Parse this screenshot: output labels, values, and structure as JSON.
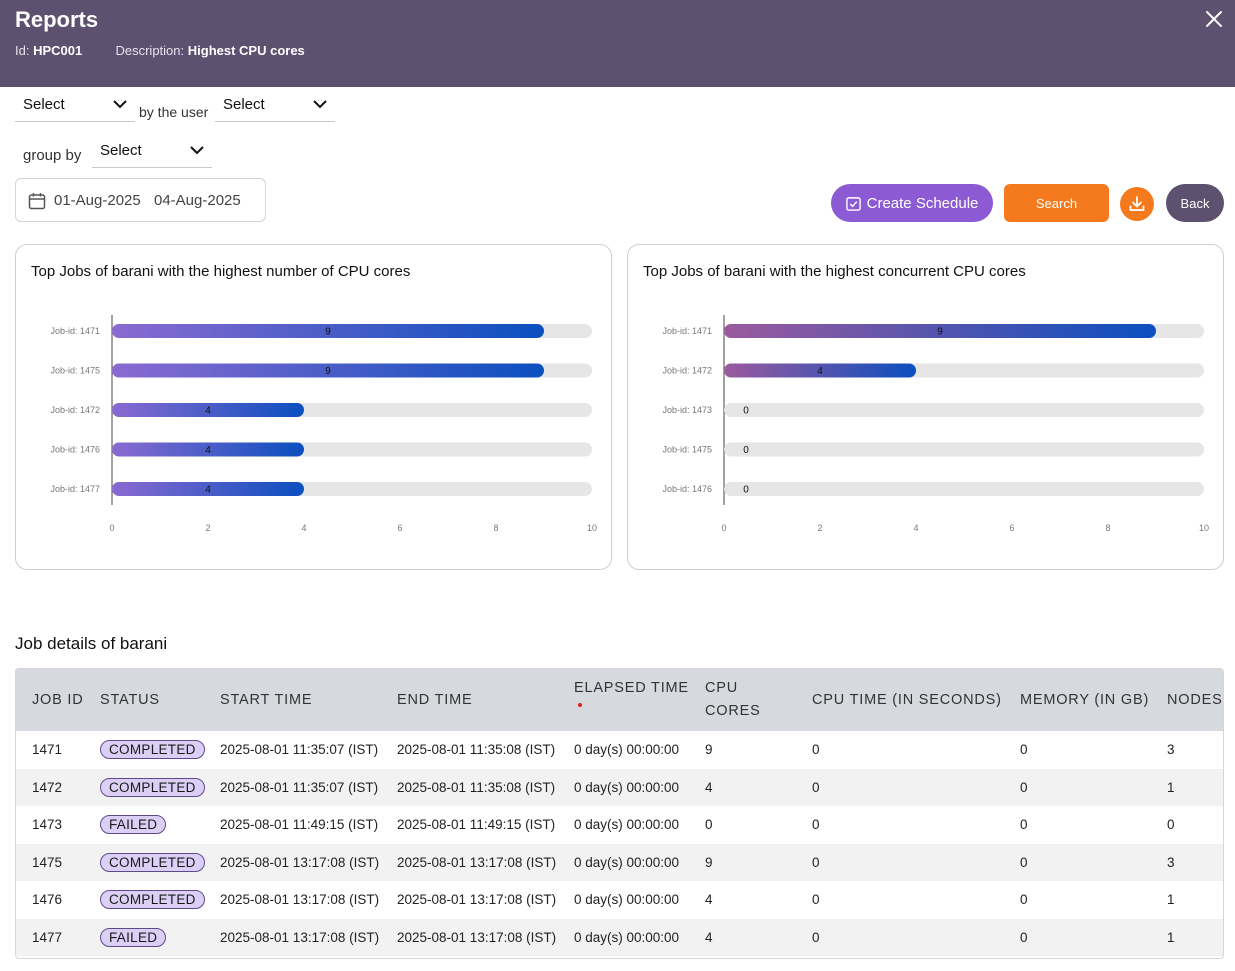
{
  "header": {
    "title": "Reports",
    "id_label": "Id:",
    "id_value": "HPC001",
    "description_label": "Description:",
    "description_value": "Highest CPU cores"
  },
  "filters": {
    "select_1": "Select",
    "by_the_user": "by the user",
    "select_2": "Select",
    "group_by": "group by",
    "select_3": "Select",
    "date_from": "01-Aug-2025",
    "date_to": "04-Aug-2025"
  },
  "actions": {
    "create_schedule": "Create Schedule",
    "search": "Search",
    "back": "Back"
  },
  "colors": {
    "header_bg": "#5e506f",
    "schedule_button": "#8c5bd4",
    "search_button": "#f57a1d",
    "bar_gradient_start_left": "#8a6bd1",
    "bar_gradient_start_right": "#9c5a9e",
    "bar_gradient_end": "#0b4fbf",
    "bar_track": "#e6e6e6"
  },
  "chart_data": [
    {
      "type": "bar",
      "orientation": "horizontal",
      "title": "Top Jobs of barani with the highest number of CPU cores",
      "categories": [
        "Job-id: 1471",
        "Job-id: 1475",
        "Job-id: 1472",
        "Job-id: 1476",
        "Job-id: 1477"
      ],
      "values": [
        9,
        9,
        4,
        4,
        4
      ],
      "xlim": [
        0,
        10
      ],
      "xticks": [
        "0",
        "2",
        "4",
        "6",
        "8",
        "10"
      ],
      "grid": false,
      "data_labels": true
    },
    {
      "type": "bar",
      "orientation": "horizontal",
      "title": "Top Jobs of barani with the highest concurrent CPU cores",
      "categories": [
        "Job-id: 1471",
        "Job-id: 1472",
        "Job-id: 1473",
        "Job-id: 1475",
        "Job-id: 1476"
      ],
      "values": [
        9,
        4,
        0,
        0,
        0
      ],
      "xlim": [
        0,
        10
      ],
      "xticks": [
        "0",
        "2",
        "4",
        "6",
        "8",
        "10"
      ],
      "grid": false,
      "data_labels": true
    }
  ],
  "table": {
    "title": "Job details of barani",
    "headers": [
      "JOB ID",
      "STATUS",
      "START TIME",
      "END TIME",
      "ELAPSED TIME",
      "CPU CORES",
      "CPU TIME (IN SECONDS)",
      "MEMORY (IN GB)",
      "NODES"
    ],
    "rows": [
      [
        "1471",
        "COMPLETED",
        "2025-08-01 11:35:07 (IST)",
        "2025-08-01 11:35:08 (IST)",
        "0 day(s) 00:00:00",
        "9",
        "0",
        "0",
        "3"
      ],
      [
        "1472",
        "COMPLETED",
        "2025-08-01 11:35:07 (IST)",
        "2025-08-01 11:35:08 (IST)",
        "0 day(s) 00:00:00",
        "4",
        "0",
        "0",
        "1"
      ],
      [
        "1473",
        "FAILED",
        "2025-08-01 11:49:15 (IST)",
        "2025-08-01 11:49:15 (IST)",
        "0 day(s) 00:00:00",
        "0",
        "0",
        "0",
        "0"
      ],
      [
        "1475",
        "COMPLETED",
        "2025-08-01 13:17:08 (IST)",
        "2025-08-01 13:17:08 (IST)",
        "0 day(s) 00:00:00",
        "9",
        "0",
        "0",
        "3"
      ],
      [
        "1476",
        "COMPLETED",
        "2025-08-01 13:17:08 (IST)",
        "2025-08-01 13:17:08 (IST)",
        "0 day(s) 00:00:00",
        "4",
        "0",
        "0",
        "1"
      ],
      [
        "1477",
        "FAILED",
        "2025-08-01 13:17:08 (IST)",
        "2025-08-01 13:17:08 (IST)",
        "0 day(s) 00:00:00",
        "4",
        "0",
        "0",
        "1"
      ]
    ]
  }
}
